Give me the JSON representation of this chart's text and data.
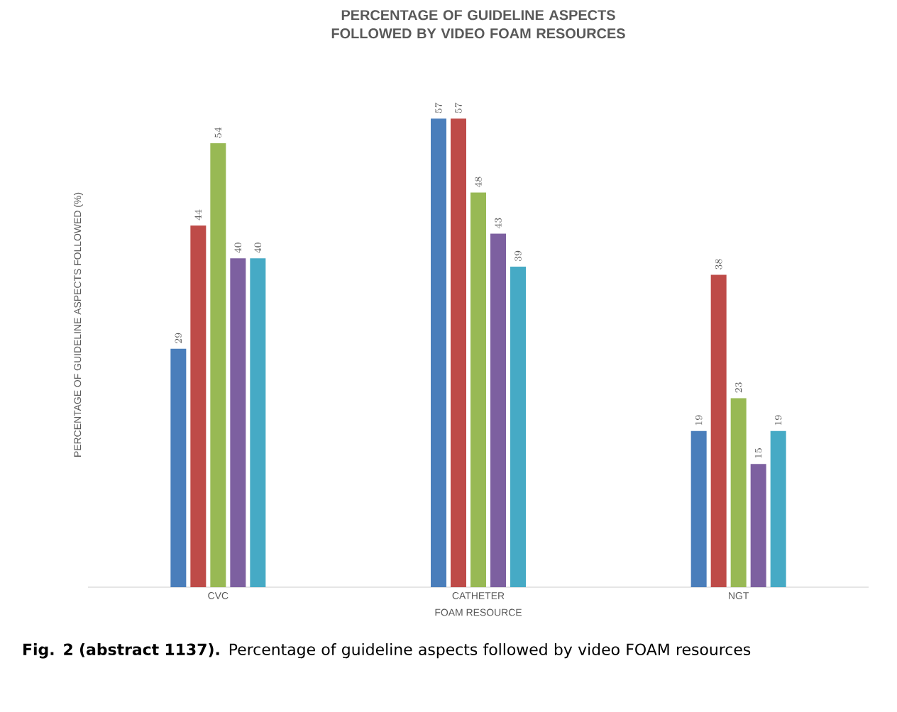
{
  "chart_data": {
    "type": "bar",
    "title": "PERCENTAGE OF GUIDELINE ASPECTS FOLLOWED BY VIDEO FOAM RESOURCES",
    "xlabel": "FOAM RESOURCE",
    "ylabel": "PERCENTAGE OF GUIDELINE ASPECTS FOLLOWED (%)",
    "categories": [
      "CVC",
      "CATHETER",
      "NGT"
    ],
    "series": [
      {
        "color": "#4a7ebb",
        "values": [
          29,
          57,
          19
        ]
      },
      {
        "color": "#be4b48",
        "values": [
          44,
          57,
          38
        ]
      },
      {
        "color": "#98b954",
        "values": [
          54,
          48,
          23
        ]
      },
      {
        "color": "#7d60a0",
        "values": [
          40,
          43,
          15
        ]
      },
      {
        "color": "#46aac5",
        "values": [
          40,
          39,
          19
        ]
      }
    ],
    "data_labels": true,
    "annotations": [
      "**Fig. 2 (abstract 1137).** Percentage of guideline aspects followed by video FOAM resources"
    ]
  }
}
